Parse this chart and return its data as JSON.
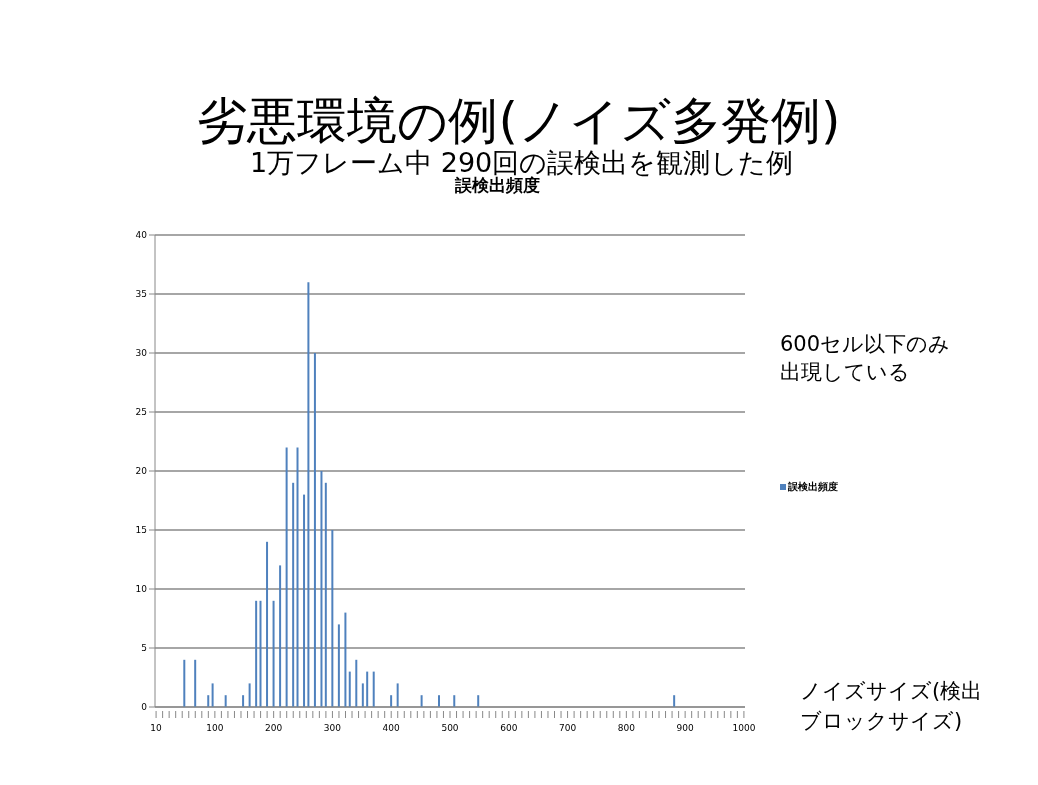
{
  "chart_data": {
    "type": "bar",
    "title": "劣悪環境の例(ノイズ多発例)",
    "subtitle": "1万フレーム中 290回の誤検出を観測した例",
    "xlabel": "ノイズサイズ(検出ブロックサイズ)",
    "annotations": [
      "誤検出頻度",
      "600セル以下のみ出現している"
    ],
    "categories": [
      "10",
      null,
      null,
      null,
      null,
      null,
      null,
      null,
      null,
      null,
      null,
      null,
      null,
      null,
      null,
      null,
      null,
      null,
      null,
      null,
      null,
      null,
      null,
      null,
      null,
      null,
      null,
      "100",
      null,
      null,
      null,
      null,
      null,
      null,
      null,
      null,
      null,
      null,
      null,
      null,
      null,
      null,
      null,
      null,
      null,
      null,
      null,
      null,
      null,
      null,
      null,
      null,
      null,
      null,
      "200",
      null,
      null,
      null,
      null,
      null,
      null,
      null,
      null,
      null,
      null,
      null,
      null,
      null,
      null,
      null,
      null,
      null,
      null,
      null,
      null,
      null,
      null,
      null,
      null,
      null,
      null,
      "300",
      null,
      null,
      null,
      null,
      null,
      null,
      null,
      null,
      null,
      null,
      null,
      null,
      null,
      null,
      null,
      null,
      null,
      null,
      null,
      null,
      null,
      null,
      null,
      null,
      null,
      null,
      "400",
      null,
      null,
      null,
      null,
      null,
      null,
      null,
      null,
      null,
      null,
      null,
      null,
      null,
      null,
      null,
      null,
      null,
      null,
      null,
      null,
      null,
      null,
      null,
      null,
      null,
      null,
      "500",
      null,
      null,
      null,
      null,
      null,
      null,
      null,
      null,
      null,
      null,
      null,
      null,
      null,
      null,
      null,
      null,
      null,
      null,
      null,
      null,
      null,
      null,
      null,
      null,
      null,
      null,
      "600",
      null,
      null,
      null,
      null,
      null,
      null,
      null,
      null,
      null,
      null,
      null,
      null,
      null,
      null,
      null,
      null,
      null,
      null,
      null,
      null,
      null,
      null,
      null,
      null,
      null,
      null,
      "700",
      null,
      null,
      null,
      null,
      null,
      null,
      null,
      null,
      null,
      null,
      null,
      null,
      null,
      null,
      null,
      null,
      null,
      null,
      null,
      null,
      null,
      null,
      null,
      null,
      null,
      null,
      "800",
      null,
      null,
      null,
      null,
      null,
      null,
      null,
      null,
      null,
      null,
      null,
      null,
      null,
      null,
      null,
      null,
      null,
      null,
      null,
      null,
      null,
      null,
      null,
      null,
      null,
      null,
      "900",
      null,
      null,
      null,
      null,
      null,
      null,
      null,
      null,
      null,
      null,
      null,
      null,
      null,
      null,
      null,
      null,
      null,
      null,
      null,
      null,
      null,
      null,
      null,
      null,
      null,
      null,
      "1000"
    ],
    "series": [
      {
        "name": "誤検出頻度",
        "color": "#4f81bd",
        "values": [
          null,
          null,
          null,
          null,
          null,
          null,
          null,
          null,
          null,
          null,
          null,
          null,
          null,
          4,
          null,
          null,
          null,
          null,
          4,
          null,
          null,
          null,
          null,
          null,
          1,
          null,
          2,
          null,
          null,
          null,
          null,
          null,
          1,
          null,
          null,
          null,
          null,
          null,
          null,
          null,
          1,
          null,
          null,
          2,
          null,
          null,
          9,
          null,
          9,
          null,
          null,
          14,
          null,
          null,
          9,
          null,
          null,
          12,
          null,
          null,
          22,
          null,
          null,
          19,
          null,
          22,
          null,
          null,
          18,
          null,
          36,
          null,
          null,
          30,
          null,
          null,
          20,
          null,
          19,
          null,
          null,
          15,
          null,
          null,
          7,
          null,
          null,
          8,
          null,
          3,
          null,
          null,
          4,
          null,
          null,
          2,
          null,
          3,
          null,
          null,
          3,
          null,
          null,
          null,
          null,
          null,
          null,
          null,
          1,
          null,
          null,
          2,
          null,
          null,
          null,
          null,
          null,
          null,
          null,
          null,
          null,
          null,
          1,
          null,
          null,
          null,
          null,
          null,
          null,
          null,
          1,
          null,
          null,
          null,
          null,
          null,
          null,
          1,
          null,
          null,
          null,
          null,
          null,
          null,
          null,
          null,
          null,
          null,
          1,
          null,
          null,
          null,
          null,
          null,
          null,
          null,
          null,
          null,
          null,
          null,
          null,
          null,
          null,
          null,
          null,
          null,
          null,
          null,
          null,
          null,
          null,
          null,
          null,
          null,
          null,
          null,
          null,
          null,
          null,
          null,
          null,
          null,
          null,
          null,
          null,
          null,
          null,
          null,
          null,
          null,
          null,
          null,
          null,
          null,
          null,
          null,
          null,
          null,
          null,
          null,
          null,
          null,
          null,
          null,
          null,
          null,
          null,
          null,
          null,
          null,
          null,
          null,
          null,
          null,
          null,
          null,
          null,
          null,
          null,
          null,
          null,
          null,
          null,
          null,
          null,
          null,
          null,
          null,
          null,
          null,
          null,
          null,
          null,
          null,
          null,
          null,
          null,
          null,
          1,
          null,
          null,
          null,
          null,
          null,
          null,
          null,
          null,
          null,
          null,
          null,
          null,
          null,
          null,
          null,
          null,
          null,
          null,
          null,
          null,
          null,
          null,
          null,
          null,
          null,
          null,
          null,
          null,
          null,
          null,
          null,
          null
        ]
      }
    ],
    "ylim": [
      0,
      40
    ],
    "yticks": [
      0,
      5,
      10,
      15,
      20,
      25,
      30,
      35,
      40
    ],
    "grid": "y",
    "legend": "right"
  }
}
